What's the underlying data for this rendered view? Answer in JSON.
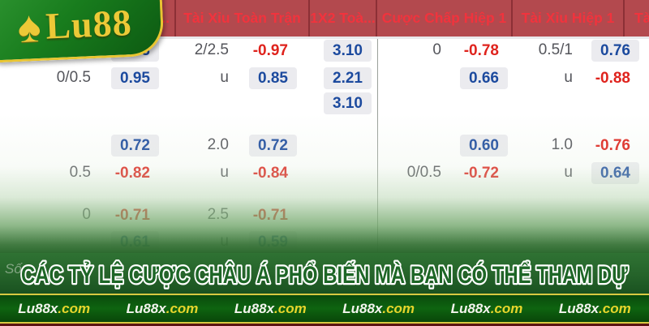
{
  "brand": {
    "name": "Lu88",
    "spade_icon": "♠"
  },
  "header": {
    "columns": [
      {
        "label": "..."
      },
      {
        "label": "Tài Xỉu Toàn Trận"
      },
      {
        "label": "1X2 Toà..."
      },
      {
        "label": "Cược Chấp Hiệp 1"
      },
      {
        "label": "Tài Xỉu Hiệp 1"
      },
      {
        "label": "Tà"
      }
    ]
  },
  "odds": {
    "rows": [
      {
        "c1": {
          "h": "",
          "v": "0.93"
        },
        "c2": {
          "h": "2/2.5",
          "v": "-0.97"
        },
        "c3": {
          "v": "3.10"
        },
        "c4": {
          "h": "0",
          "v": "-0.78"
        },
        "c5": {
          "h": "0.5/1",
          "v": "0.76"
        }
      },
      {
        "c1": {
          "h": "0/0.5",
          "v": "0.95"
        },
        "c2": {
          "h": "u",
          "v": "0.85"
        },
        "c3": {
          "v": "2.21"
        },
        "c4": {
          "h": "",
          "v": "0.66"
        },
        "c5": {
          "h": "u",
          "v": "-0.88"
        }
      },
      {
        "c3": {
          "v": "3.10"
        }
      },
      {
        "c1": {
          "h": "",
          "v": "0.72"
        },
        "c2": {
          "h": "2.0",
          "v": "0.72"
        },
        "c4": {
          "h": "",
          "v": "0.60"
        },
        "c5": {
          "h": "1.0",
          "v": "-0.76"
        }
      },
      {
        "c1": {
          "h": "0.5",
          "v": "-0.82"
        },
        "c2": {
          "h": "u",
          "v": "-0.84"
        },
        "c4": {
          "h": "0/0.5",
          "v": "-0.72"
        },
        "c5": {
          "h": "u",
          "v": "0.64"
        }
      },
      {
        "c1": {
          "h": "0",
          "v": "-0.71"
        },
        "c2": {
          "h": "2.5",
          "v": "-0.71"
        }
      },
      {
        "c1": {
          "h": "",
          "v": "0.61"
        },
        "c2": {
          "h": "u",
          "v": "0.59"
        }
      }
    ]
  },
  "watermark": "Số",
  "headline": {
    "text": "CÁC TỶ LỆ CƯỢC CHÂU Á PHỔ BIẾN MÀ BẠN CÓ THỂ THAM DỰ"
  },
  "footer": {
    "site": "Lu88x",
    "tld": ".com",
    "repeat_count": 6
  },
  "colors": {
    "header_red_bg": "#b3494e",
    "header_red_text": "#f1333d",
    "odds_blue": "#1c4a9e",
    "odds_red": "#df231d",
    "pill_gray": "#ebebef",
    "brand_green": "#187c1d",
    "brand_gold": "#e9c531",
    "footer_yellow": "#e7d52c",
    "overlay_green": "#2d6a2f"
  }
}
